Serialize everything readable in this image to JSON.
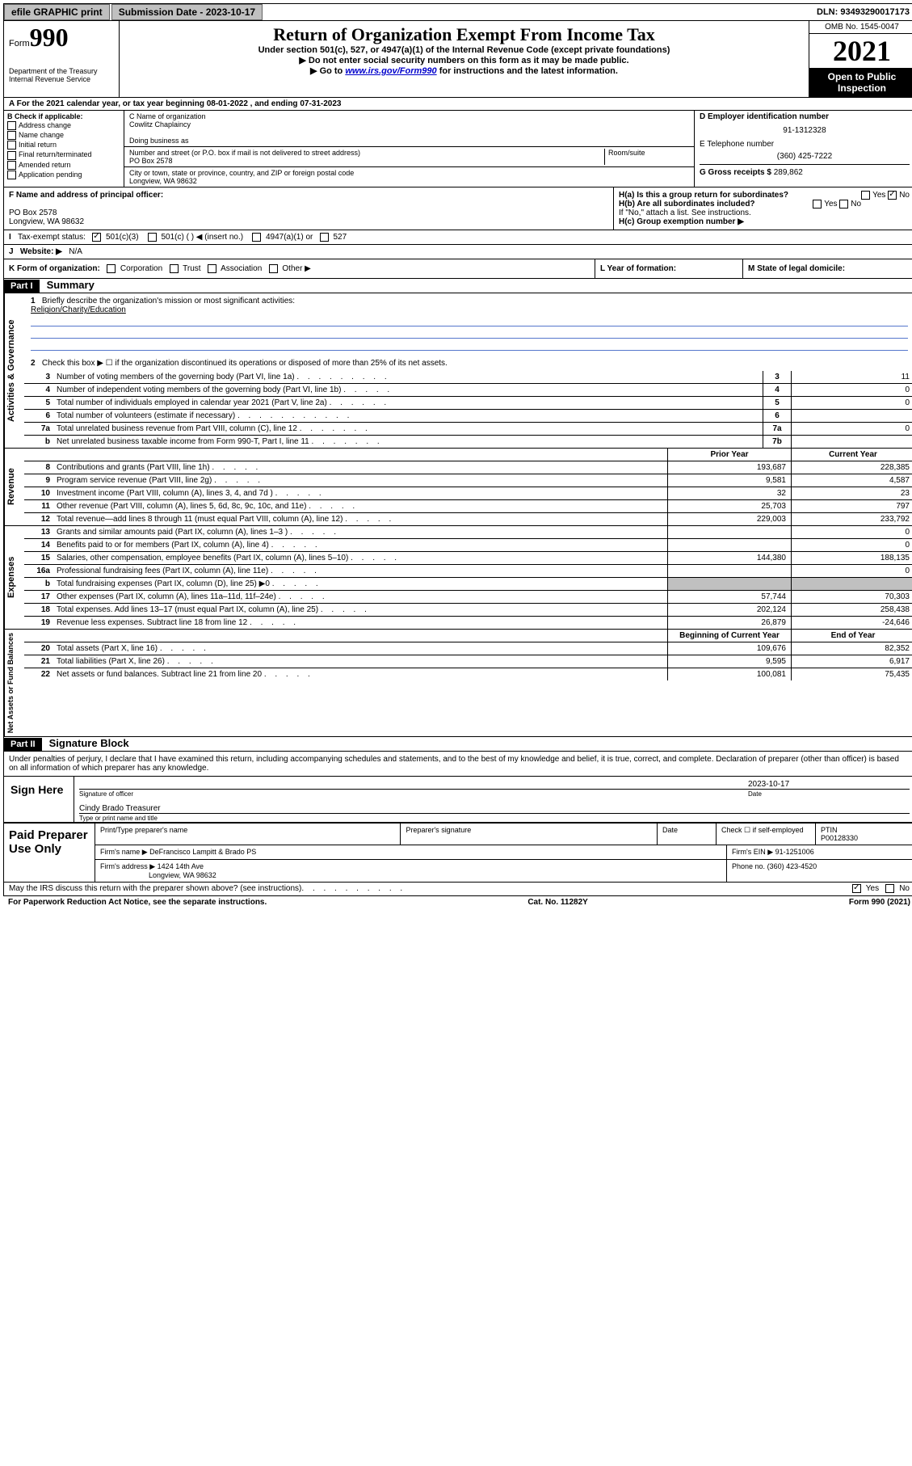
{
  "topbar": {
    "efile": "efile GRAPHIC print",
    "sub_label": "Submission Date - 2023-10-17",
    "dln": "DLN: 93493290017173"
  },
  "header": {
    "form_label": "Form",
    "form_num": "990",
    "dept": "Department of the Treasury",
    "irs": "Internal Revenue Service",
    "title": "Return of Organization Exempt From Income Tax",
    "sub1": "Under section 501(c), 527, or 4947(a)(1) of the Internal Revenue Code (except private foundations)",
    "sub2": "Do not enter social security numbers on this form as it may be made public.",
    "sub3_pre": "Go to ",
    "sub3_link": "www.irs.gov/Form990",
    "sub3_post": " for instructions and the latest information.",
    "omb": "OMB No. 1545-0047",
    "year": "2021",
    "open": "Open to Public Inspection"
  },
  "row_a": "A For the 2021 calendar year, or tax year beginning 08-01-2022   , and ending 07-31-2023",
  "col_b": {
    "title": "B Check if applicable:",
    "items": [
      "Address change",
      "Name change",
      "Initial return",
      "Final return/terminated",
      "Amended return",
      "Application pending"
    ]
  },
  "col_c": {
    "name_label": "C Name of organization",
    "name": "Cowlitz Chaplaincy",
    "dba_label": "Doing business as",
    "addr_label": "Number and street (or P.O. box if mail is not delivered to street address)",
    "room_label": "Room/suite",
    "addr": "PO Box 2578",
    "city_label": "City or town, state or province, country, and ZIP or foreign postal code",
    "city": "Longview, WA  98632"
  },
  "col_de": {
    "d_label": "D Employer identification number",
    "d_val": "91-1312328",
    "e_label": "E Telephone number",
    "e_val": "(360) 425-7222",
    "g_label": "G Gross receipts $",
    "g_val": "289,862"
  },
  "col_f": {
    "label": "F Name and address of principal officer:",
    "addr1": "PO Box 2578",
    "addr2": "Longview, WA  98632"
  },
  "col_h": {
    "ha": "H(a)  Is this a group return for subordinates?",
    "hb": "H(b)  Are all subordinates included?",
    "hb_note": "If \"No,\" attach a list. See instructions.",
    "hc": "H(c)  Group exemption number ▶",
    "yes": "Yes",
    "no": "No"
  },
  "row_i": {
    "label": "Tax-exempt status:",
    "opts": [
      "501(c)(3)",
      "501(c) (  ) ◀ (insert no.)",
      "4947(a)(1) or",
      "527"
    ]
  },
  "row_j": {
    "label": "Website: ▶",
    "val": "N/A"
  },
  "row_k": {
    "k": "K Form of organization:",
    "opts": [
      "Corporation",
      "Trust",
      "Association",
      "Other ▶"
    ],
    "l": "L Year of formation:",
    "m": "M State of legal domicile:"
  },
  "part1": {
    "header": "Part I",
    "title": "Summary"
  },
  "governance": {
    "label": "Activities & Governance",
    "l1": "Briefly describe the organization's mission or most significant activities:",
    "l1_val": "Religion/Charity/Education",
    "l2": "Check this box ▶ ☐  if the organization discontinued its operations or disposed of more than 25% of its net assets.",
    "l3": "Number of voting members of the governing body (Part VI, line 1a)",
    "l3_val": "11",
    "l4": "Number of independent voting members of the governing body (Part VI, line 1b)",
    "l4_val": "0",
    "l5": "Total number of individuals employed in calendar year 2021 (Part V, line 2a)",
    "l5_val": "0",
    "l6": "Total number of volunteers (estimate if necessary)",
    "l6_val": "",
    "l7a": "Total unrelated business revenue from Part VIII, column (C), line 12",
    "l7a_val": "0",
    "l7b": "Net unrelated business taxable income from Form 990-T, Part I, line 11",
    "l7b_val": ""
  },
  "revenue": {
    "label": "Revenue",
    "prior": "Prior Year",
    "current": "Current Year",
    "rows": [
      {
        "n": "8",
        "t": "Contributions and grants (Part VIII, line 1h)",
        "p": "193,687",
        "c": "228,385"
      },
      {
        "n": "9",
        "t": "Program service revenue (Part VIII, line 2g)",
        "p": "9,581",
        "c": "4,587"
      },
      {
        "n": "10",
        "t": "Investment income (Part VIII, column (A), lines 3, 4, and 7d )",
        "p": "32",
        "c": "23"
      },
      {
        "n": "11",
        "t": "Other revenue (Part VIII, column (A), lines 5, 6d, 8c, 9c, 10c, and 11e)",
        "p": "25,703",
        "c": "797"
      },
      {
        "n": "12",
        "t": "Total revenue—add lines 8 through 11 (must equal Part VIII, column (A), line 12)",
        "p": "229,003",
        "c": "233,792"
      }
    ]
  },
  "expenses": {
    "label": "Expenses",
    "rows": [
      {
        "n": "13",
        "t": "Grants and similar amounts paid (Part IX, column (A), lines 1–3 )",
        "p": "",
        "c": "0"
      },
      {
        "n": "14",
        "t": "Benefits paid to or for members (Part IX, column (A), line 4)",
        "p": "",
        "c": "0"
      },
      {
        "n": "15",
        "t": "Salaries, other compensation, employee benefits (Part IX, column (A), lines 5–10)",
        "p": "144,380",
        "c": "188,135"
      },
      {
        "n": "16a",
        "t": "Professional fundraising fees (Part IX, column (A), line 11e)",
        "p": "",
        "c": "0"
      },
      {
        "n": "b",
        "t": "Total fundraising expenses (Part IX, column (D), line 25) ▶0",
        "p": "",
        "c": "",
        "shaded": true
      },
      {
        "n": "17",
        "t": "Other expenses (Part IX, column (A), lines 11a–11d, 11f–24e)",
        "p": "57,744",
        "c": "70,303"
      },
      {
        "n": "18",
        "t": "Total expenses. Add lines 13–17 (must equal Part IX, column (A), line 25)",
        "p": "202,124",
        "c": "258,438"
      },
      {
        "n": "19",
        "t": "Revenue less expenses. Subtract line 18 from line 12",
        "p": "26,879",
        "c": "-24,646"
      }
    ]
  },
  "netassets": {
    "label": "Net Assets or Fund Balances",
    "begin": "Beginning of Current Year",
    "end": "End of Year",
    "rows": [
      {
        "n": "20",
        "t": "Total assets (Part X, line 16)",
        "p": "109,676",
        "c": "82,352"
      },
      {
        "n": "21",
        "t": "Total liabilities (Part X, line 26)",
        "p": "9,595",
        "c": "6,917"
      },
      {
        "n": "22",
        "t": "Net assets or fund balances. Subtract line 21 from line 20",
        "p": "100,081",
        "c": "75,435"
      }
    ]
  },
  "part2": {
    "header": "Part II",
    "title": "Signature Block",
    "declare": "Under penalties of perjury, I declare that I have examined this return, including accompanying schedules and statements, and to the best of my knowledge and belief, it is true, correct, and complete. Declaration of preparer (other than officer) is based on all information of which preparer has any knowledge."
  },
  "sign": {
    "label": "Sign Here",
    "sig_officer": "Signature of officer",
    "date": "Date",
    "date_val": "2023-10-17",
    "name": "Cindy Brado  Treasurer",
    "name_label": "Type or print name and title"
  },
  "preparer": {
    "label": "Paid Preparer Use Only",
    "h1": "Print/Type preparer's name",
    "h2": "Preparer's signature",
    "h3": "Date",
    "h4": "Check ☐ if self-employed",
    "h5": "PTIN",
    "ptin": "P00128330",
    "firm_name_label": "Firm's name    ▶",
    "firm_name": "DeFrancisco Lampitt & Brado PS",
    "firm_ein_label": "Firm's EIN ▶",
    "firm_ein": "91-1251006",
    "firm_addr_label": "Firm's address ▶",
    "firm_addr1": "1424 14th Ave",
    "firm_addr2": "Longview, WA  98632",
    "phone_label": "Phone no.",
    "phone": "(360) 423-4520"
  },
  "footer": {
    "discuss": "May the IRS discuss this return with the preparer shown above? (see instructions)",
    "yes": "Yes",
    "no": "No",
    "paperwork": "For Paperwork Reduction Act Notice, see the separate instructions.",
    "cat": "Cat. No. 11282Y",
    "form": "Form 990 (2021)"
  }
}
